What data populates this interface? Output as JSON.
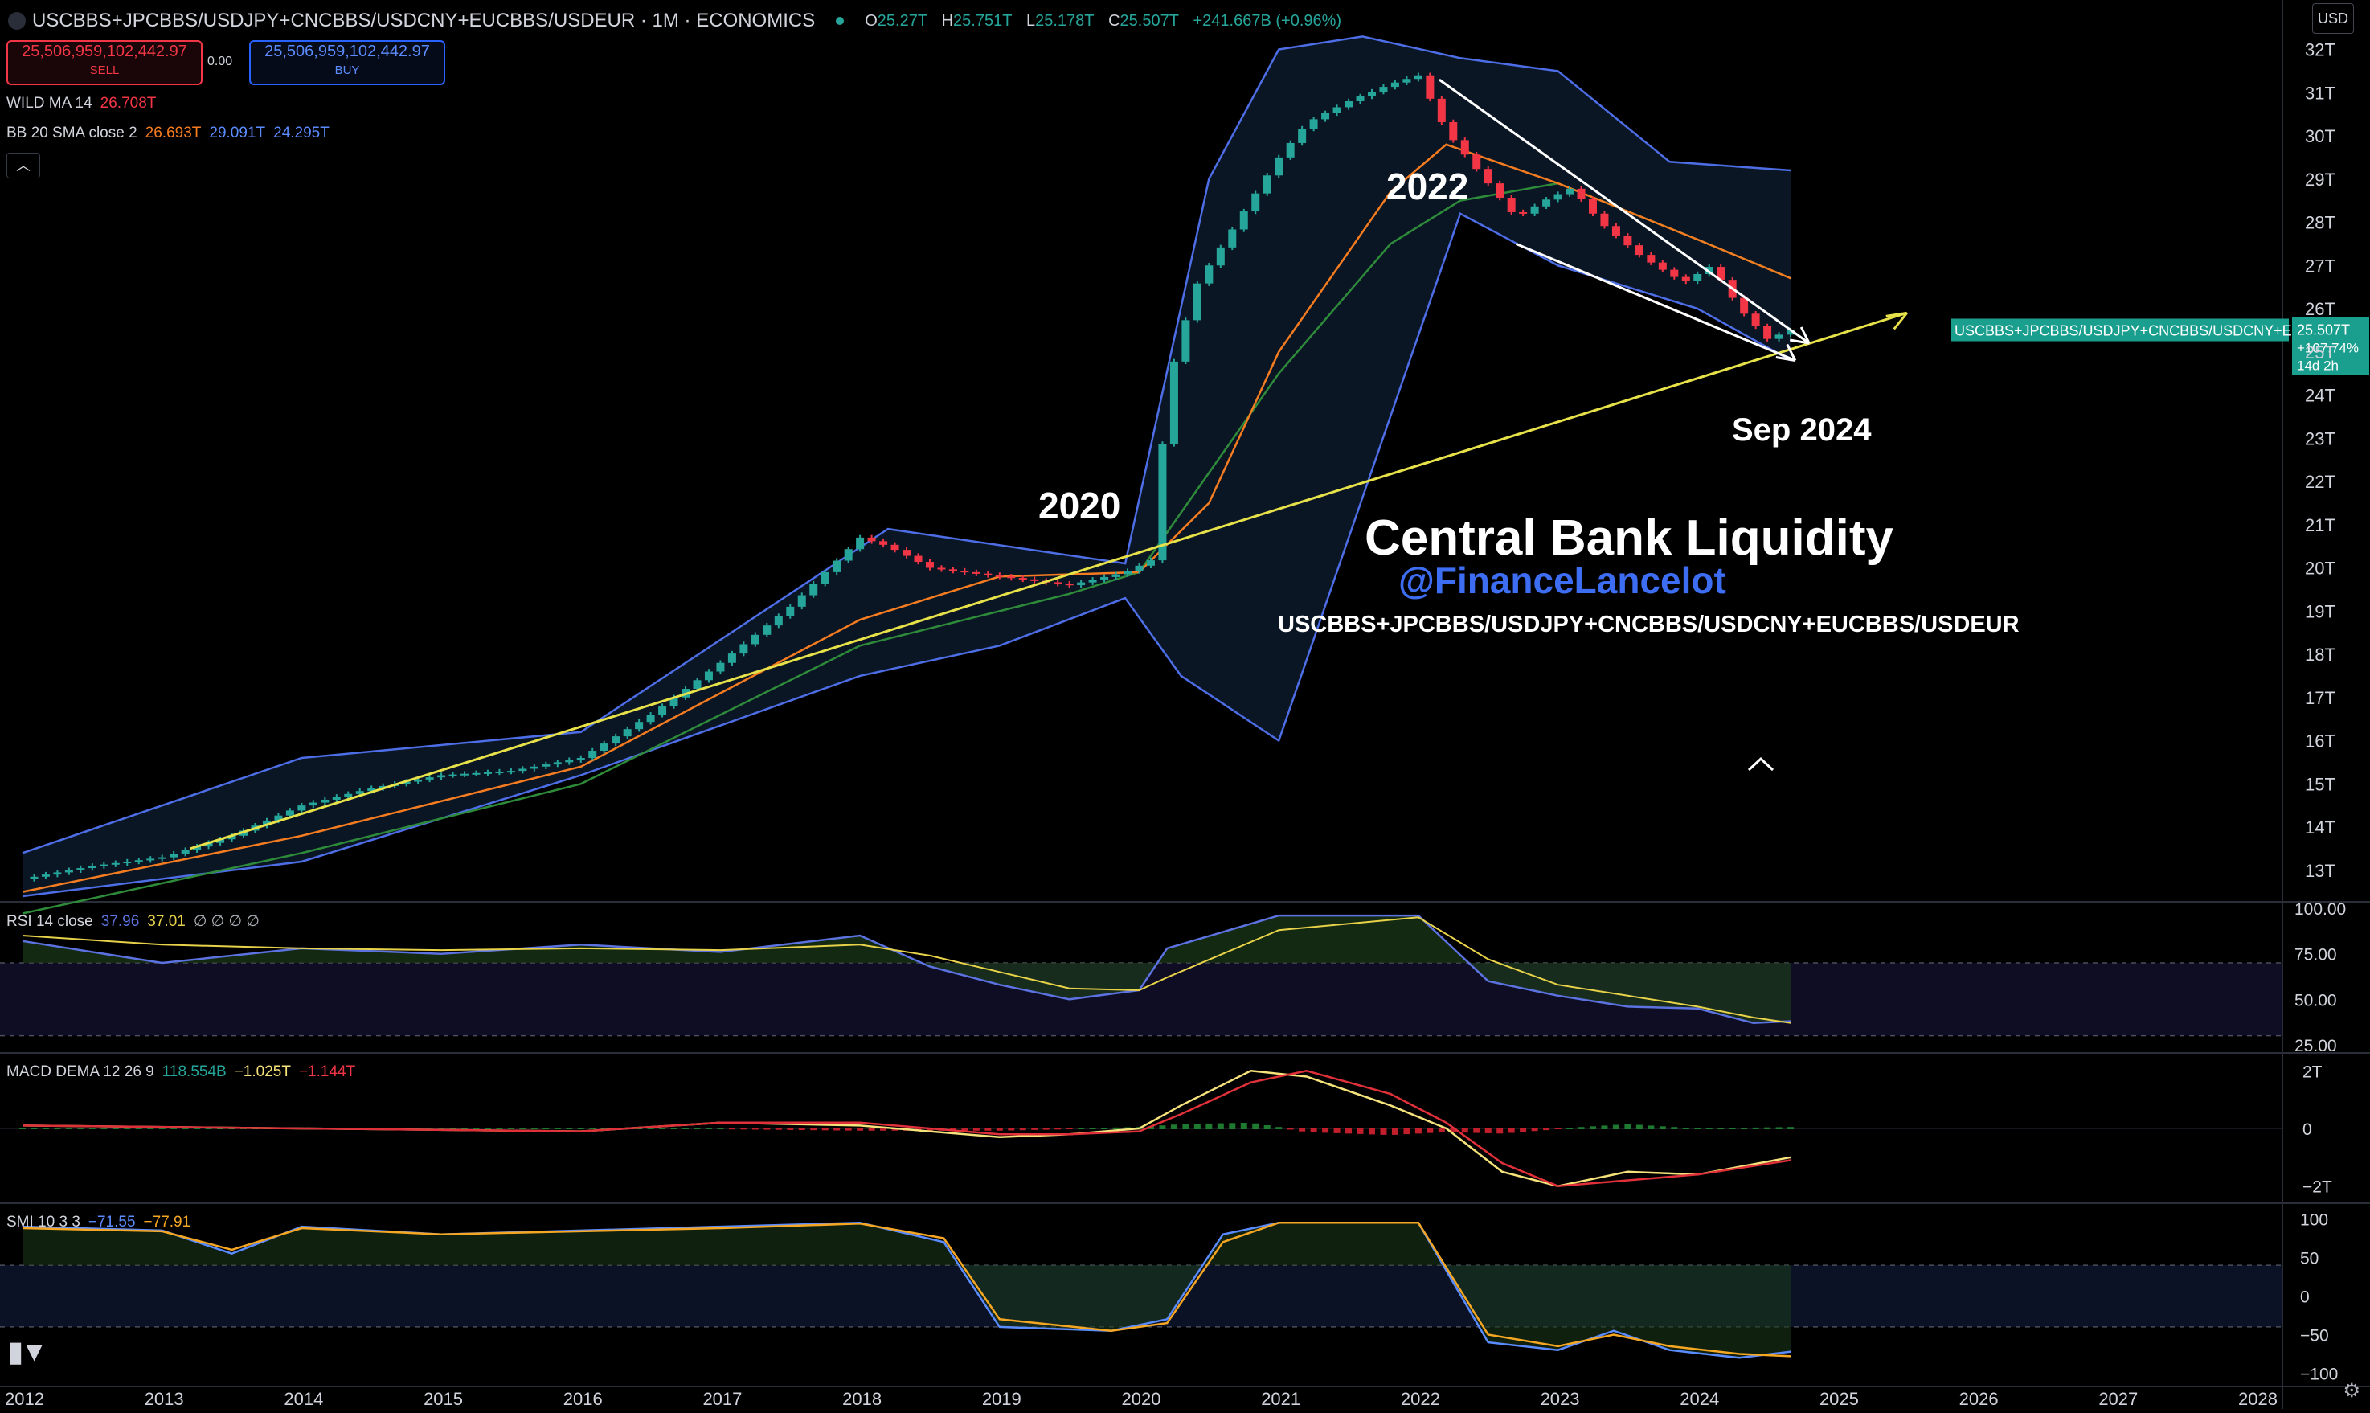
{
  "header": {
    "symbol": "USCBBS+JPCBBS/USDJPY+CNCBBS/USDCNY+EUCBBS/USDEUR · 1M · ECONOMICS",
    "o_label": "O",
    "o": "25.27T",
    "h_label": "H",
    "h": "25.751T",
    "l_label": "L",
    "l": "25.178T",
    "c_label": "C",
    "c": "25.507T",
    "change": "+241.667B (+0.96%)"
  },
  "trade": {
    "sell_price": "25,506,959,102,442.97",
    "sell_label": "SELL",
    "spread": "0.00",
    "buy_price": "25,506,959,102,442.97",
    "buy_label": "BUY"
  },
  "indicators": {
    "wild_ma": {
      "label": "WILD MA 14",
      "value": "26.708T"
    },
    "bb": {
      "label": "BB 20 SMA close 2",
      "basis": "26.693T",
      "upper": "29.091T",
      "lower": "24.295T"
    },
    "rsi": {
      "label": "RSI 14 close",
      "rsi": "37.96",
      "ma": "37.01",
      "extra": "∅ ∅ ∅ ∅"
    },
    "macd": {
      "label": "MACD DEMA 12 26 9",
      "hist": "118.554B",
      "macd": "−1.025T",
      "signal": "−1.144T"
    },
    "smi": {
      "label": "SMI 10 3 3",
      "smi": "−71.55",
      "signal": "−77.91"
    }
  },
  "currency": "USD",
  "price_tag": {
    "name": "USCBBS+JPCBBS/USDJPY+CNCBBS/USDCNY+EU...",
    "value": "25.507T",
    "pct": "+107.74%",
    "countdown": "14d 2h"
  },
  "annotations": {
    "title": "Central Bank Liquidity",
    "handle": "@FinanceLancelot",
    "formula": "USCBBS+JPCBBS/USDJPY+CNCBBS/USDCNY+EUCBBS/USDEUR",
    "y2020": "2020",
    "y2022": "2022",
    "sep2024": "Sep 2024"
  },
  "colors": {
    "up": "#26a69a",
    "down": "#f23645",
    "bb": "#4d6ee6",
    "wild": "#f57c20",
    "basis": "#2e8b3a",
    "trend": "#e8e24a",
    "rsi": "#5b72e0",
    "rsi_ma": "#e8d24a",
    "macd": "#f5e27a",
    "signal": "#e0303a",
    "smi": "#5b8cff",
    "smi_sig": "#f5a623",
    "tag": "#1a9e8e"
  },
  "chart_data": {
    "type": "line",
    "title": "Central Bank Liquidity",
    "x_ticks": [
      "2012",
      "2013",
      "2014",
      "2015",
      "2016",
      "2017",
      "2018",
      "2019",
      "2020",
      "2021",
      "2022",
      "2023",
      "2024",
      "2025",
      "2026",
      "2027",
      "2028"
    ],
    "price_axis": {
      "unit": "T",
      "ylim": [
        12.4,
        32.4
      ],
      "ticks": [
        "13T",
        "14T",
        "15T",
        "16T",
        "17T",
        "18T",
        "19T",
        "20T",
        "21T",
        "22T",
        "23T",
        "24T",
        "25T",
        "26T",
        "27T",
        "28T",
        "29T",
        "30T",
        "31T",
        "32T"
      ]
    },
    "candles_close_T": {
      "x": [
        2012.0,
        2012.5,
        2013.0,
        2013.5,
        2014.0,
        2014.5,
        2015.0,
        2015.5,
        2016.0,
        2016.5,
        2017.0,
        2017.5,
        2018.0,
        2018.2,
        2018.5,
        2019.0,
        2019.5,
        2019.9,
        2020.1,
        2020.2,
        2020.4,
        2020.7,
        2021.0,
        2021.2,
        2021.5,
        2021.8,
        2022.0,
        2022.2,
        2022.4,
        2022.7,
        2022.9,
        2023.1,
        2023.3,
        2023.6,
        2023.9,
        2024.1,
        2024.3,
        2024.5,
        2024.67
      ],
      "values": [
        12.8,
        13.1,
        13.3,
        13.8,
        14.5,
        14.9,
        15.2,
        15.3,
        15.6,
        16.6,
        17.8,
        19.1,
        20.7,
        20.5,
        20.0,
        19.8,
        19.6,
        19.9,
        20.2,
        24.2,
        26.5,
        28.0,
        29.5,
        30.3,
        30.8,
        31.2,
        31.4,
        30.1,
        29.3,
        28.1,
        28.5,
        28.8,
        28.0,
        27.2,
        26.6,
        27.0,
        26.0,
        25.3,
        25.5
      ]
    },
    "bollinger_upper_T": {
      "x": [
        2012.0,
        2014.0,
        2016.0,
        2018.2,
        2019.9,
        2020.5,
        2021.0,
        2021.6,
        2022.3,
        2023.0,
        2023.8,
        2024.67
      ],
      "values": [
        13.4,
        15.6,
        16.2,
        20.9,
        20.1,
        29.0,
        32.0,
        32.3,
        31.8,
        31.5,
        29.4,
        29.2
      ]
    },
    "bollinger_lower_T": {
      "x": [
        2012.0,
        2014.0,
        2016.0,
        2018.0,
        2019.0,
        2019.9,
        2020.3,
        2021.0,
        2022.3,
        2023.0,
        2024.0,
        2024.67
      ],
      "values": [
        12.4,
        13.2,
        15.2,
        17.5,
        18.2,
        19.3,
        17.5,
        16.0,
        28.2,
        27.0,
        26.0,
        24.8
      ]
    },
    "wild_ma_T": {
      "x": [
        2012.0,
        2014.0,
        2016.0,
        2018.0,
        2019.0,
        2020.0,
        2020.5,
        2021.0,
        2021.8,
        2022.2,
        2023.0,
        2024.0,
        2024.67
      ],
      "values": [
        12.5,
        13.8,
        15.4,
        18.8,
        19.8,
        19.9,
        21.5,
        25.0,
        28.7,
        29.8,
        28.9,
        27.6,
        26.7
      ]
    },
    "bb_basis_T": {
      "x": [
        2012.0,
        2014.0,
        2016.0,
        2018.0,
        2019.5,
        2020.0,
        2021.0,
        2021.8,
        2022.3,
        2023.0,
        2024.0,
        2024.67
      ],
      "values": [
        12.0,
        13.4,
        15.0,
        18.2,
        19.4,
        19.9,
        24.5,
        27.5,
        28.5,
        28.9,
        27.6,
        26.7
      ]
    },
    "trendline_T": {
      "x": [
        2013.2,
        2025.5
      ],
      "values": [
        13.5,
        25.9
      ]
    },
    "rsi": {
      "ylim": [
        25,
        100
      ],
      "ticks": [
        "100.00",
        "75.00",
        "50.00",
        "25.00"
      ],
      "x": [
        2012.0,
        2013.0,
        2014.0,
        2015.0,
        2016.0,
        2017.0,
        2018.0,
        2018.5,
        2019.0,
        2019.5,
        2020.0,
        2020.2,
        2021.0,
        2022.0,
        2022.5,
        2023.0,
        2023.5,
        2024.0,
        2024.4,
        2024.67
      ],
      "values": [
        82,
        70,
        78,
        75,
        80,
        76,
        85,
        68,
        58,
        50,
        55,
        78,
        96,
        96,
        60,
        52,
        46,
        45,
        37,
        38
      ],
      "ma": [
        85,
        80,
        78,
        77,
        78,
        77,
        80,
        74,
        65,
        56,
        55,
        62,
        88,
        95,
        72,
        58,
        52,
        46,
        40,
        37
      ]
    },
    "macd": {
      "ylim": [
        -2,
        2
      ],
      "ticks": [
        "2T",
        "0",
        "−2T"
      ],
      "x": [
        2012.0,
        2014.0,
        2016.0,
        2017.0,
        2018.0,
        2019.0,
        2019.5,
        2020.0,
        2020.3,
        2020.8,
        2021.2,
        2021.8,
        2022.2,
        2022.6,
        2023.0,
        2023.5,
        2024.0,
        2024.67
      ],
      "values": [
        0.1,
        0.0,
        -0.1,
        0.2,
        0.1,
        -0.3,
        -0.2,
        0.0,
        0.8,
        2.0,
        1.8,
        0.8,
        0.0,
        -1.5,
        -2.0,
        -1.5,
        -1.6,
        -1.0
      ],
      "signal": [
        0.1,
        0.0,
        -0.1,
        0.2,
        0.2,
        -0.2,
        -0.2,
        -0.1,
        0.5,
        1.6,
        2.0,
        1.2,
        0.2,
        -1.2,
        -2.0,
        -1.8,
        -1.6,
        -1.1
      ]
    },
    "smi": {
      "ylim": [
        -100,
        100
      ],
      "ticks": [
        "100",
        "50",
        "0",
        "−50",
        "−100"
      ],
      "x": [
        2012.0,
        2013.0,
        2013.5,
        2014.0,
        2015.0,
        2016.0,
        2017.0,
        2018.0,
        2018.6,
        2019.0,
        2019.8,
        2020.2,
        2020.6,
        2021.0,
        2022.0,
        2022.5,
        2023.0,
        2023.4,
        2023.8,
        2024.3,
        2024.67
      ],
      "smi": [
        90,
        85,
        55,
        90,
        80,
        85,
        90,
        95,
        70,
        -40,
        -45,
        -30,
        80,
        95,
        95,
        -60,
        -70,
        -45,
        -70,
        -80,
        -72
      ],
      "signal": [
        88,
        84,
        60,
        88,
        80,
        84,
        88,
        94,
        75,
        -30,
        -45,
        -35,
        70,
        95,
        95,
        -50,
        -65,
        -50,
        -65,
        -75,
        -78
      ]
    }
  }
}
